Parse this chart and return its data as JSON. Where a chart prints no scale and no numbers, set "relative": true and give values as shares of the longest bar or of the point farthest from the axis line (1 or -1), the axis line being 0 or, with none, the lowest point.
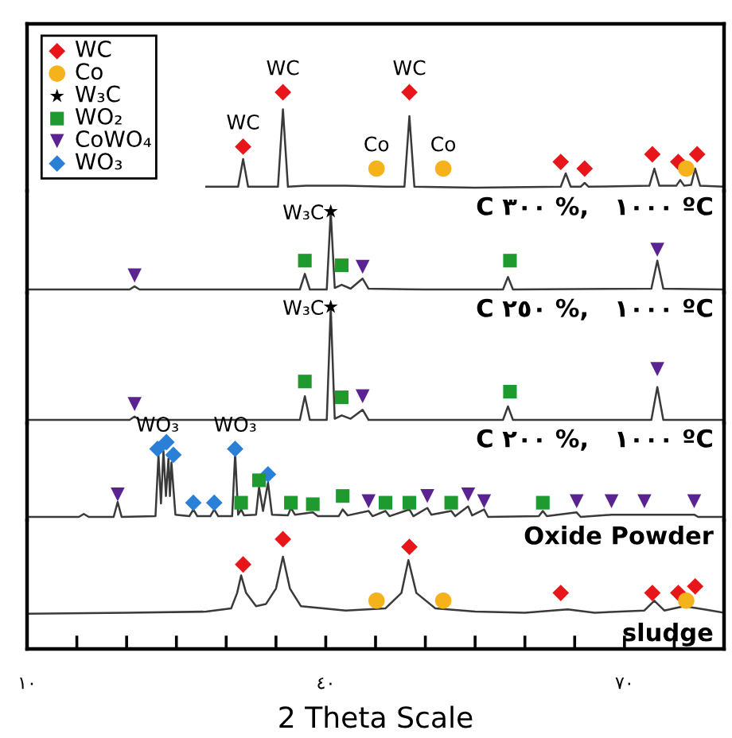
{
  "chart_data": [
    {
      "type": "line",
      "relative": true,
      "xlim": [
        10,
        80
      ],
      "tick_labels": false,
      "legend": "top left",
      "annotations": [
        {
          "text": "WC",
          "x": 31.7,
          "y": 0.43
        },
        {
          "text": "WC",
          "x": 35.7,
          "y": 1
        },
        {
          "text": "WC",
          "x": 48.4,
          "y": 1
        },
        {
          "text": "Co",
          "x": 45.1,
          "y": 0.2
        },
        {
          "text": "Co",
          "x": 51.8,
          "y": 0.2
        },
        "C ٣٠٠ %,   ١٠٠٠ ºC"
      ],
      "series": [
        {
          "color": "#3a3a3a",
          "x": [
            28,
            31.2,
            31.7,
            32.2,
            35.2,
            35.7,
            36.2,
            38,
            42,
            46,
            47.9,
            48.4,
            48.9,
            55,
            63.6,
            64.1,
            64.6,
            65.6,
            66.0,
            66.4,
            72.5,
            73.0,
            73.5,
            75.2,
            75.6,
            76.0,
            76.7,
            77.1,
            77.6,
            80
          ],
          "values": [
            0.01,
            0.01,
            0.3,
            0.01,
            0.01,
            0.82,
            0.01,
            0.02,
            0.02,
            0.01,
            0.01,
            0.75,
            0.01,
            0,
            0.01,
            0.15,
            0.01,
            0.01,
            0.05,
            0.01,
            0.02,
            0.2,
            0.02,
            0.02,
            0.08,
            0.02,
            0.03,
            0.2,
            0.02,
            0.01
          ]
        },
        {
          "type": "scatter",
          "name": "WC",
          "color": "#e8161b",
          "marker": "diamond",
          "x": [
            31.7,
            35.7,
            48.4,
            63.6,
            66.0,
            72.8,
            75.4,
            77.3
          ],
          "values": [
            0.43,
            1,
            1,
            0.27,
            0.2,
            0.35,
            0.27,
            0.35
          ]
        },
        {
          "type": "scatter",
          "name": "Co",
          "color": "#f6b21b",
          "marker": "circle",
          "x": [
            45.1,
            51.8,
            76.2
          ],
          "values": [
            0.2,
            0.2,
            0.2
          ]
        }
      ]
    },
    {
      "type": "line",
      "relative": true,
      "xlim": [
        10,
        80
      ],
      "tick_labels": false,
      "legend": "top left",
      "annotations": [
        {
          "text": "W₃C",
          "x": 40.5,
          "y": 1
        },
        "C ٢٥٠ %,   ١٠٠٠ ºC"
      ],
      "series": [
        {
          "color": "#3a3a3a",
          "x": [
            10,
            20.3,
            20.8,
            21.3,
            30,
            37.4,
            37.9,
            38.4,
            40.1,
            40.5,
            40.9,
            41.6,
            42.5,
            43.7,
            44.3,
            50,
            57.8,
            58.3,
            58.8,
            72.7,
            73.3,
            73.9,
            80
          ],
          "values": [
            0,
            0,
            0.04,
            0,
            0,
            0,
            0.2,
            0,
            0,
            1,
            0.02,
            0.06,
            0.01,
            0.14,
            0.01,
            0,
            0,
            0.16,
            0,
            0.01,
            0.37,
            0.01,
            0
          ]
        },
        {
          "type": "scatter",
          "name": "W₃C",
          "color": "#000000",
          "marker": "star",
          "x": [
            40.5
          ],
          "values": [
            1
          ]
        },
        {
          "type": "scatter",
          "name": "WO₂",
          "color": "#1e9a2f",
          "marker": "square",
          "x": [
            37.9,
            41.6,
            58.5
          ],
          "values": [
            0.37,
            0.31,
            0.37
          ]
        },
        {
          "type": "scatter",
          "name": "CoWO₄",
          "color": "#5a2391",
          "marker": "triangle",
          "x": [
            20.8,
            43.7,
            73.3
          ],
          "values": [
            0.18,
            0.29,
            0.51
          ]
        }
      ]
    },
    {
      "type": "line",
      "relative": true,
      "xlim": [
        10,
        80
      ],
      "tick_labels": false,
      "annotations": [
        {
          "text": "W₃C",
          "x": 40.5,
          "y": 1
        },
        "C ٢٠٠ %,   ١٠٠٠ ºC"
      ],
      "series": [
        {
          "color": "#3a3a3a",
          "x": [
            10,
            20.3,
            20.8,
            21.3,
            30,
            37.4,
            37.9,
            38.4,
            40.1,
            40.5,
            40.9,
            41.6,
            42.5,
            43.7,
            44.3,
            57.8,
            58.3,
            58.8,
            72.7,
            73.3,
            73.9,
            80
          ],
          "values": [
            0,
            0,
            0.03,
            0,
            0,
            0,
            0.21,
            0,
            0,
            1,
            0.01,
            0.04,
            0.01,
            0.09,
            0,
            0,
            0.12,
            0,
            0,
            0.29,
            0,
            0
          ]
        },
        {
          "type": "scatter",
          "color": "#000000",
          "marker": "star",
          "x": [
            40.5
          ],
          "values": [
            1
          ]
        },
        {
          "type": "scatter",
          "name": "WO₂",
          "color": "#1e9a2f",
          "marker": "square",
          "x": [
            37.9,
            41.6,
            58.5
          ],
          "values": [
            0.34,
            0.2,
            0.25
          ]
        },
        {
          "type": "scatter",
          "name": "CoWO₄",
          "color": "#5a2391",
          "marker": "triangle",
          "x": [
            20.8,
            43.7,
            73.3
          ],
          "values": [
            0.14,
            0.21,
            0.45
          ]
        }
      ]
    },
    {
      "type": "line",
      "relative": true,
      "xlim": [
        10,
        80
      ],
      "tick_labels": false,
      "legend": "top left",
      "annotations": [
        {
          "text": "WO₃",
          "x": 23.1,
          "y": 0.91
        },
        {
          "text": "WO₃",
          "x": 30.9,
          "y": 0.91
        },
        "Oxide Powder"
      ],
      "series": [
        {
          "color": "#3a3a3a",
          "x": [
            10,
            15.2,
            15.7,
            16.2,
            18.7,
            19.1,
            19.5,
            22.9,
            23.2,
            23.45,
            23.7,
            23.95,
            24.2,
            24.35,
            24.5,
            24.9,
            26.3,
            26.7,
            27.1,
            28.4,
            28.8,
            29.2,
            30.6,
            30.9,
            31.2,
            31.5,
            31.8,
            33.0,
            33.3,
            33.7,
            34.2,
            34.6,
            36.2,
            36.5,
            36.9,
            38.7,
            39.2,
            41.3,
            41.7,
            42.2,
            44.3,
            44.7,
            46.0,
            46.4,
            48.4,
            48.8,
            50.2,
            50.6,
            52.6,
            53.0,
            54.3,
            54.7,
            55.9,
            56.3,
            61.4,
            61.8,
            62.2,
            65.2,
            65.6,
            68.7,
            72.0,
            77.0,
            77.4,
            80
          ],
          "values": [
            0,
            0,
            0.04,
            0,
            0,
            0.2,
            0,
            0.01,
            0.83,
            0.18,
            0.88,
            0.28,
            0.78,
            0.28,
            0.73,
            0.03,
            0.01,
            0.1,
            0.01,
            0.01,
            0.1,
            0.01,
            0.01,
            0.85,
            0.03,
            0.1,
            0.02,
            0.03,
            0.4,
            0.08,
            0.46,
            0.03,
            0.02,
            0.12,
            0.03,
            0.06,
            0.01,
            0.01,
            0.1,
            0.02,
            0.08,
            0.01,
            0.08,
            0.01,
            0.1,
            0.01,
            0.12,
            0.03,
            0.08,
            0.01,
            0.14,
            0.02,
            0.1,
            0,
            0.01,
            0.08,
            0.01,
            0.06,
            0,
            0.03,
            0.03,
            0.03,
            0,
            0
          ]
        },
        {
          "type": "scatter",
          "name": "WO₃",
          "color": "#2a7fd6",
          "marker": "diamond",
          "x": [
            23.1,
            24.0,
            24.7,
            30.9,
            26.7,
            28.8,
            34.2
          ],
          "values": [
            0.91,
            1,
            0.83,
            0.91,
            0.19,
            0.19,
            0.57
          ]
        },
        {
          "type": "scatter",
          "name": "WO₂",
          "color": "#1e9a2f",
          "marker": "square",
          "x": [
            31.5,
            33.3,
            36.5,
            38.7,
            41.7,
            46.0,
            48.4,
            52.6,
            61.8
          ],
          "values": [
            0.19,
            0.49,
            0.19,
            0.17,
            0.28,
            0.19,
            0.19,
            0.19,
            0.19
          ]
        },
        {
          "type": "scatter",
          "name": "CoWO₄",
          "color": "#5a2391",
          "marker": "triangle",
          "x": [
            19.1,
            44.3,
            50.2,
            54.3,
            55.9,
            65.2,
            68.7,
            72.0,
            77.0
          ],
          "values": [
            0.3,
            0.21,
            0.28,
            0.3,
            0.21,
            0.21,
            0.21,
            0.21,
            0.21
          ]
        }
      ]
    },
    {
      "type": "line",
      "relative": true,
      "xlim": [
        10,
        80
      ],
      "xticks": [
        {
          "value": 10,
          "label": "١٠"
        },
        {
          "value": 15,
          "label": null
        },
        {
          "value": 20,
          "label": null
        },
        {
          "value": 25,
          "label": null
        },
        {
          "value": 30,
          "label": null
        },
        {
          "value": 35,
          "label": null
        },
        {
          "value": 40,
          "label": "٤٠"
        },
        {
          "value": 45,
          "label": null
        },
        {
          "value": 50,
          "label": null
        },
        {
          "value": 55,
          "label": null
        },
        {
          "value": 60,
          "label": null
        },
        {
          "value": 65,
          "label": null
        },
        {
          "value": 70,
          "label": "٧٠"
        },
        {
          "value": 75,
          "label": null
        }
      ],
      "tick_labels": "x",
      "xlabel": "2 Theta Scale",
      "annotations": [
        "sludge"
      ],
      "series": [
        {
          "color": "#3a3a3a",
          "x": [
            10,
            20,
            28,
            30.5,
            31.1,
            31.5,
            32.0,
            33,
            34,
            35.0,
            35.7,
            36.4,
            37.5,
            42,
            46,
            47.6,
            48.3,
            49.1,
            51,
            55,
            60,
            64.3,
            67,
            72,
            73.0,
            74,
            76,
            78,
            80
          ],
          "values": [
            0.32,
            0.33,
            0.34,
            0.37,
            0.51,
            0.67,
            0.51,
            0.39,
            0.41,
            0.55,
            0.84,
            0.55,
            0.39,
            0.35,
            0.37,
            0.51,
            0.81,
            0.51,
            0.37,
            0.34,
            0.33,
            0.36,
            0.33,
            0.35,
            0.44,
            0.35,
            0.39,
            0.36,
            0.33
          ]
        },
        {
          "type": "scatter",
          "name": "WC",
          "color": "#e8161b",
          "marker": "diamond",
          "x": [
            31.7,
            35.7,
            48.4,
            63.6,
            72.8,
            75.4,
            77.1
          ],
          "values": [
            0.77,
            1,
            0.93,
            0.51,
            0.51,
            0.51,
            0.57
          ]
        },
        {
          "type": "scatter",
          "name": "Co",
          "color": "#f6b21b",
          "marker": "circle",
          "x": [
            45.1,
            51.8,
            76.2
          ],
          "values": [
            0.44,
            0.44,
            0.44
          ]
        }
      ]
    }
  ]
}
